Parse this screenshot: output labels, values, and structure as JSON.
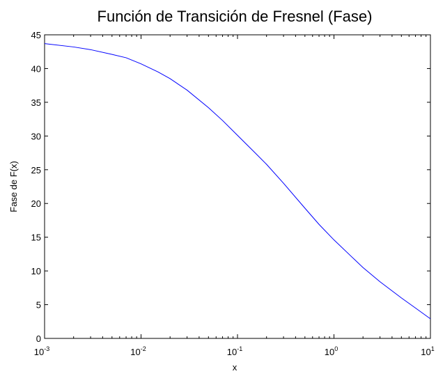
{
  "chart_data": {
    "type": "line",
    "title": "Función de Transición de Fresnel (Fase)",
    "xlabel": "x",
    "ylabel": "Fase de F(x)",
    "xscale": "log",
    "xlim": [
      0.001,
      10
    ],
    "ylim": [
      0,
      45
    ],
    "grid": false,
    "x_ticks": [
      {
        "base": "10",
        "exp": "-3"
      },
      {
        "base": "10",
        "exp": "-2"
      },
      {
        "base": "10",
        "exp": "-1"
      },
      {
        "base": "10",
        "exp": "0"
      },
      {
        "base": "10",
        "exp": "1"
      }
    ],
    "y_ticks": [
      "0",
      "5",
      "10",
      "15",
      "20",
      "25",
      "30",
      "35",
      "40",
      "45"
    ],
    "line_color": "#0000ff",
    "series": [
      {
        "x": [
          0.001,
          0.002,
          0.003,
          0.005,
          0.007,
          0.01,
          0.015,
          0.02,
          0.03,
          0.05,
          0.07,
          0.1,
          0.15,
          0.2,
          0.3,
          0.5,
          0.7,
          1.0,
          1.5,
          2.0,
          3.0,
          5.0,
          7.0,
          10.0
        ],
        "y": [
          43.7,
          43.2,
          42.8,
          42.1,
          41.6,
          40.7,
          39.5,
          38.5,
          36.8,
          34.2,
          32.3,
          30.1,
          27.6,
          25.8,
          23.0,
          19.3,
          16.9,
          14.6,
          12.2,
          10.5,
          8.4,
          6.0,
          4.5,
          2.9
        ]
      }
    ]
  }
}
